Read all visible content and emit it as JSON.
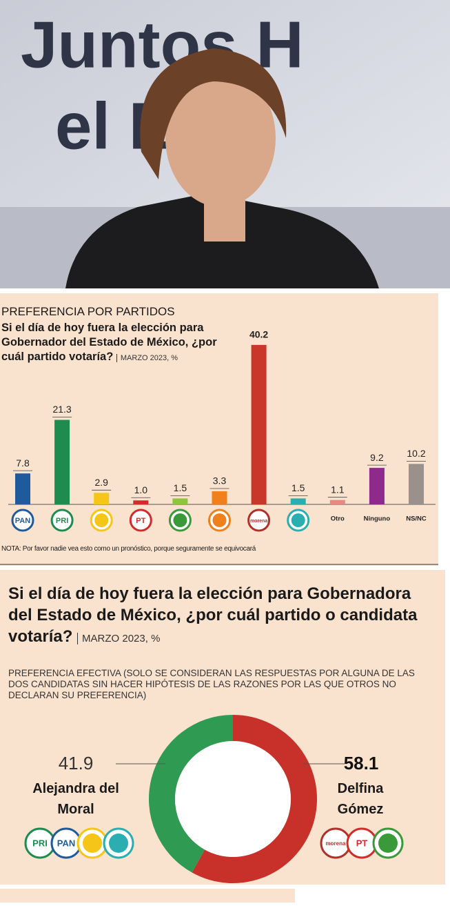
{
  "photo": {
    "banner_lines": [
      "Juntos H",
      "el Es"
    ]
  },
  "chart_data": [
    {
      "type": "bar",
      "subtitle": "PREFERENCIA POR PARTIDOS",
      "title": "Si el día de hoy fuera la elección para Gobernador del Estado de México, ¿por cuál partido votaría?",
      "date": "MARZO 2023, %",
      "categories": [
        "PAN",
        "PRI",
        null,
        "PT",
        null,
        null,
        "morena",
        null,
        "Otro",
        "Ninguno",
        "NS/NC"
      ],
      "values": [
        7.8,
        21.3,
        2.9,
        1.0,
        1.5,
        3.3,
        40.2,
        1.5,
        1.1,
        9.2,
        10.2
      ],
      "value_labels": [
        "7.8",
        "21.3",
        "2.9",
        "1.0",
        "1.5",
        "3.3",
        "40.2",
        "1.5",
        "1.1",
        "9.2",
        "10.2"
      ],
      "colors": [
        "#1f5b9c",
        "#1f8c4f",
        "#f5c518",
        "#d32a2a",
        "#8cc63f",
        "#f0801e",
        "#c9372a",
        "#2aaeb0",
        "#e48a84",
        "#8e2a8c",
        "#9b918c"
      ],
      "logo_colors": [
        "#1f5b9c",
        "#1f8c4f",
        "#f5c518",
        "#d32a2a",
        "#3a9a3a",
        "#f0801e",
        "#b0302a",
        "#2aaeb0",
        null,
        null,
        null
      ],
      "note": "NOTA: Por favor nadie vea esto como un pronóstico, porque seguramente se equivocará"
    },
    {
      "type": "pie",
      "title": "Si el día de hoy fuera la elección para Gobernadora del Estado de México, ¿por cuál partido o candidata votaría?",
      "date": "MARZO 2023, %",
      "subtitle": "PREFERENCIA EFECTIVA (SOLO SE CONSIDERAN LAS RESPUESTAS POR ALGUNA DE LAS DOS CANDIDATAS SIN HACER HIPÓTESIS DE LAS RAZONES POR LAS QUE OTROS NO DECLARAN SU PREFERENCIA)",
      "categories": [
        "Alejandra del Moral",
        "Delfina Gómez"
      ],
      "values": [
        41.9,
        58.1
      ],
      "colors": [
        "#2e9a52",
        "#c8302a"
      ],
      "logos": [
        [
          {
            "label": "PRI",
            "color": "#1f8c4f"
          },
          {
            "label": "PAN",
            "color": "#1f5b9c"
          },
          {
            "label": null,
            "color": "#f5c518"
          },
          {
            "label": null,
            "color": "#2aaeb0"
          }
        ],
        [
          {
            "label": "morena",
            "color": "#b0302a"
          },
          {
            "label": "PT",
            "color": "#d32a2a"
          },
          {
            "label": null,
            "color": "#3a9a3a"
          }
        ]
      ]
    }
  ]
}
